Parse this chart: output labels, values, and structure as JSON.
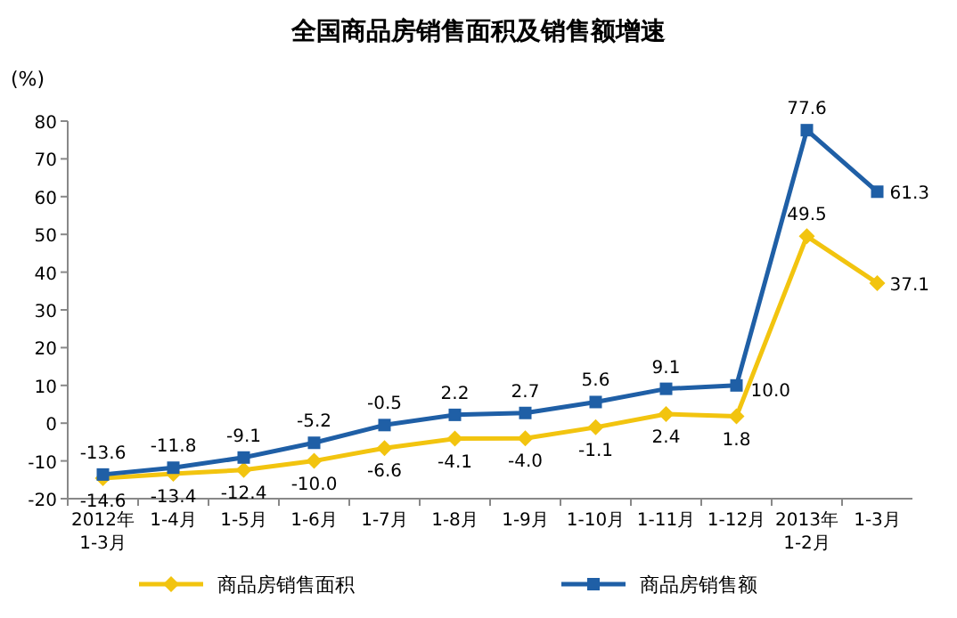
{
  "chart_data": {
    "type": "line",
    "title": "全国商品房销售面积及销售额增速",
    "ylabel": "(%)",
    "categories": [
      "2012年\n1-3月",
      "1-4月",
      "1-5月",
      "1-6月",
      "1-7月",
      "1-8月",
      "1-9月",
      "1-10月",
      "1-11月",
      "1-12月",
      "2013年\n1-2月",
      "1-3月"
    ],
    "series": [
      {
        "name": "商品房销售面积",
        "color": "#f2c40f",
        "marker": "diamond",
        "values": [
          -14.6,
          -13.4,
          -12.4,
          -10.0,
          -6.6,
          -4.1,
          -4.0,
          -1.1,
          2.4,
          1.8,
          49.5,
          37.1
        ],
        "value_labels": [
          "-14.6",
          "-13.4",
          "-12.4",
          "-10.0",
          "-6.6",
          "-4.1",
          "-4.0",
          "-1.1",
          "2.4",
          "1.8",
          "49.5",
          "37.1"
        ]
      },
      {
        "name": "商品房销售额",
        "color": "#1f5fa6",
        "marker": "square",
        "values": [
          -13.6,
          -11.8,
          -9.1,
          -5.2,
          -0.5,
          2.2,
          2.7,
          5.6,
          9.1,
          10.0,
          77.6,
          61.3
        ],
        "value_labels": [
          "-13.6",
          "-11.8",
          "-9.1",
          "-5.2",
          "-0.5",
          "2.2",
          "2.7",
          "5.6",
          "9.1",
          "10.0",
          "77.6",
          "61.3"
        ]
      }
    ],
    "ylim": [
      -20,
      80
    ],
    "yticks": [
      -20,
      -10,
      0,
      10,
      20,
      30,
      40,
      50,
      60,
      70,
      80
    ],
    "legend": "bottom"
  }
}
